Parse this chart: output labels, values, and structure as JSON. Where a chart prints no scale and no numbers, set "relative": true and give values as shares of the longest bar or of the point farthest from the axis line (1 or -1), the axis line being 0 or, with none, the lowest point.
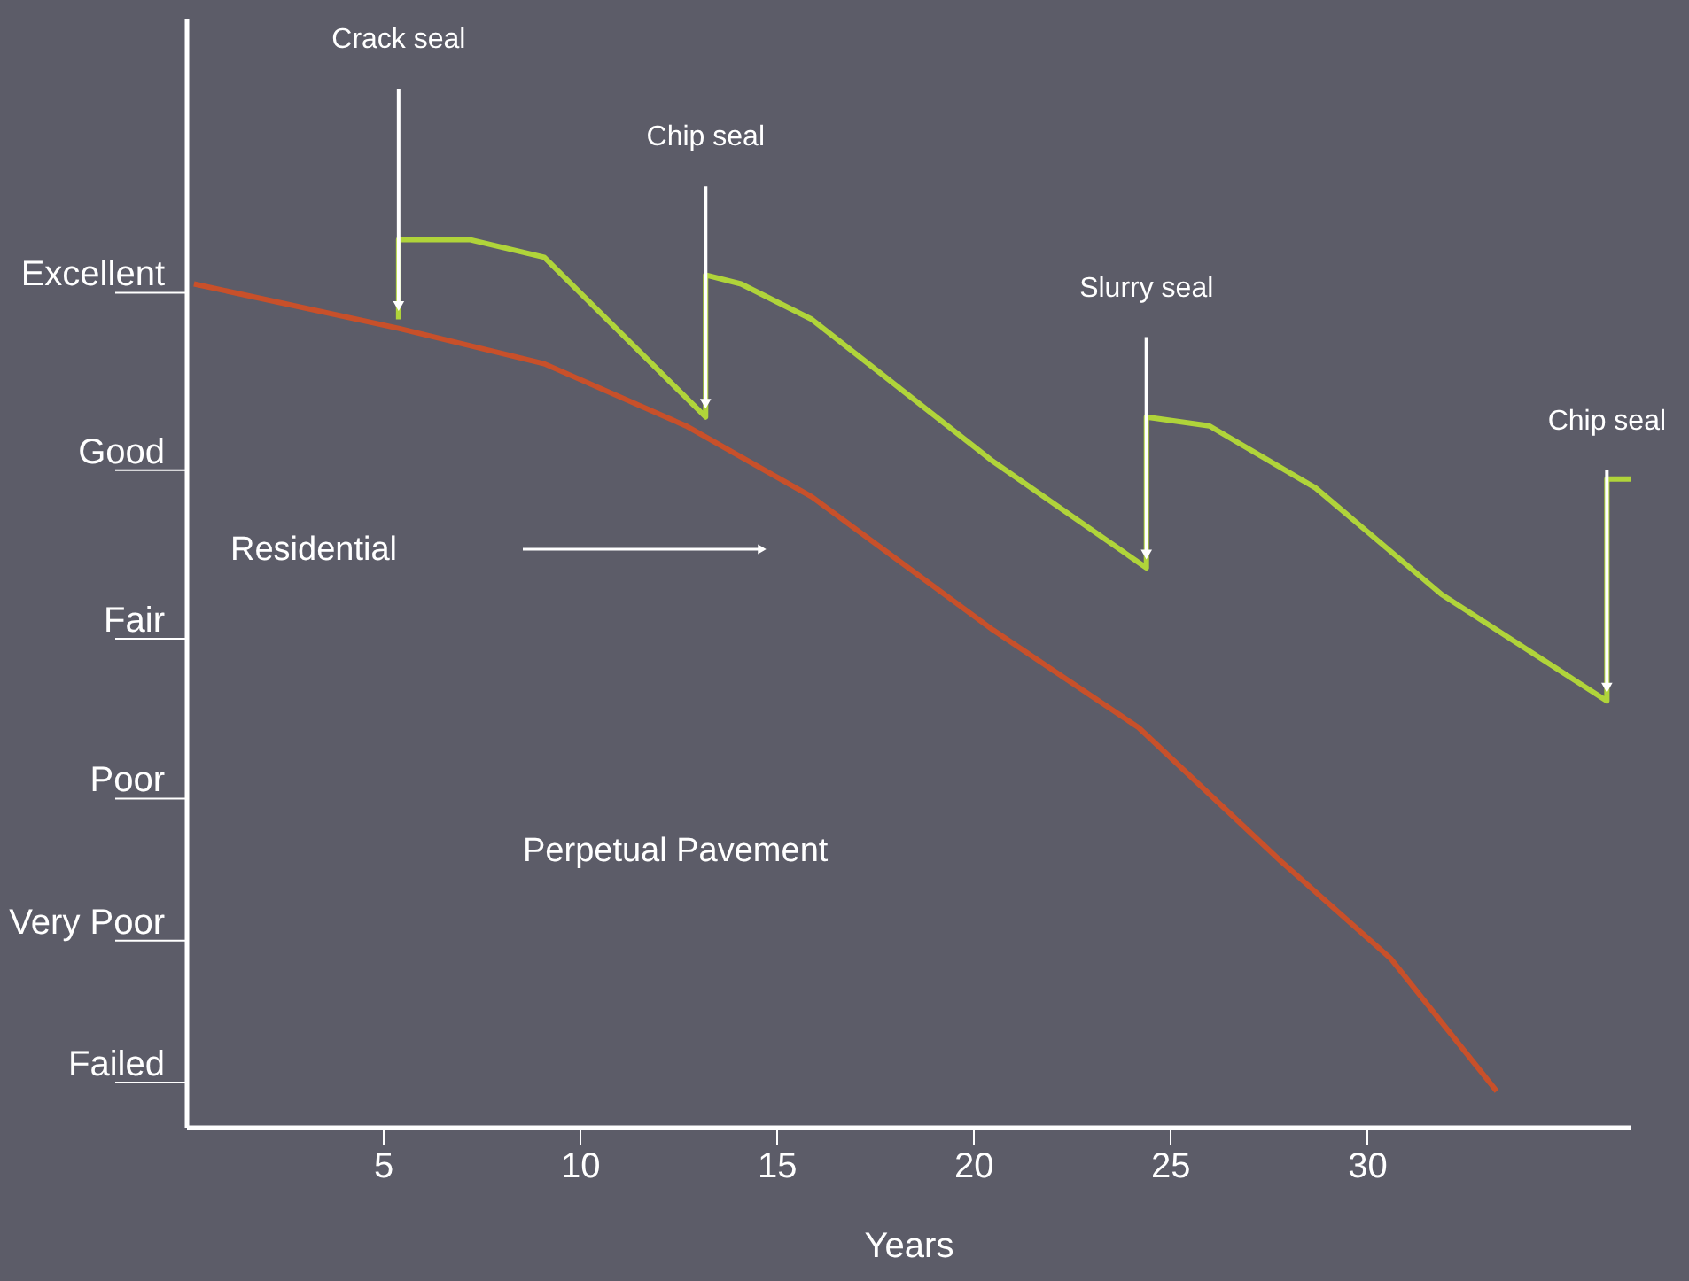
{
  "chart_data": {
    "type": "line",
    "xlabel": "Years",
    "relative": true,
    "xlim": [
      0,
      36.7
    ],
    "xticks": [
      5,
      10,
      15,
      20,
      25,
      30
    ],
    "series": [
      {
        "color": "#c8502a",
        "x": [
          0.2,
          5.4,
          9.1,
          12.7,
          15.9,
          20.5,
          24.2,
          27.8,
          30.6,
          33.3
        ],
        "values": [
          0.95,
          0.9,
          0.86,
          0.79,
          0.71,
          0.56,
          0.45,
          0.3,
          0.19,
          0.04
        ]
      },
      {
        "color": "#b0d43a",
        "x": [
          5.4,
          5.4,
          7.2,
          9.1,
          13.2,
          13.2,
          14.1,
          15.9,
          20.5,
          24.4,
          24.4,
          26.0,
          28.7,
          31.9,
          36.1,
          36.1,
          36.7
        ],
        "values": [
          0.91,
          1,
          1,
          0.98,
          0.8,
          0.96,
          0.95,
          0.91,
          0.75,
          0.63,
          0.8,
          0.79,
          0.72,
          0.6,
          0.48,
          0.73,
          0.73
        ]
      }
    ],
    "annotations": [
      "Excellent",
      "Good",
      "Fair",
      "Poor",
      "Very Poor",
      "Failed",
      "Residential",
      "Perpetual Pavement",
      {
        "text": "Crack seal",
        "x": 5.4,
        "y": 0.91
      },
      {
        "text": "Chip seal",
        "x": 13.2,
        "y": 0.8
      },
      {
        "text": "Slurry seal",
        "x": 24.4,
        "y": 0.63
      },
      {
        "text": "Chip seal",
        "x": 36.1,
        "y": 0.48
      }
    ],
    "grid": false,
    "marker": "none",
    "line_style": "solid"
  }
}
